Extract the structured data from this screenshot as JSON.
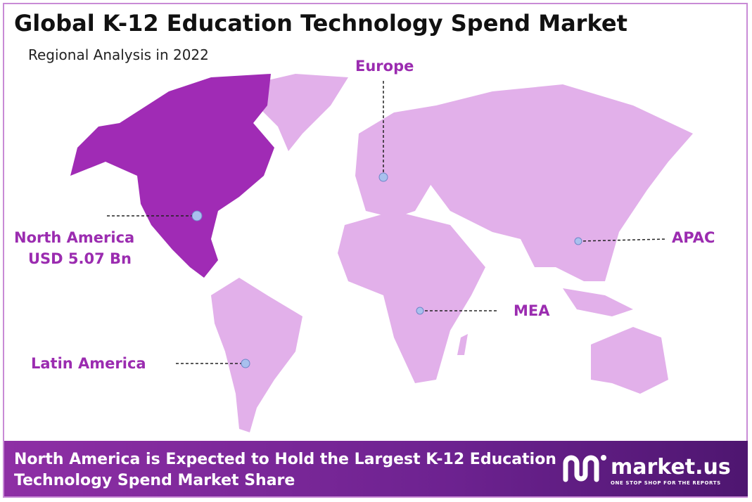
{
  "header": {
    "title": "Global K-12 Education Technology Spend Market",
    "subtitle": "Regional Analysis in 2022"
  },
  "regions": [
    {
      "name": "Europe"
    },
    {
      "name": "North America",
      "value": "USD 5.07 Bn"
    },
    {
      "name": "APAC"
    },
    {
      "name": "MEA"
    },
    {
      "name": "Latin America"
    }
  ],
  "footer": {
    "text": "North America is Expected to Hold the Largest K-12 Education Technology Spend Market Share",
    "logo": "market.us",
    "tagline": "ONE STOP SHOP FOR THE REPORTS"
  }
}
